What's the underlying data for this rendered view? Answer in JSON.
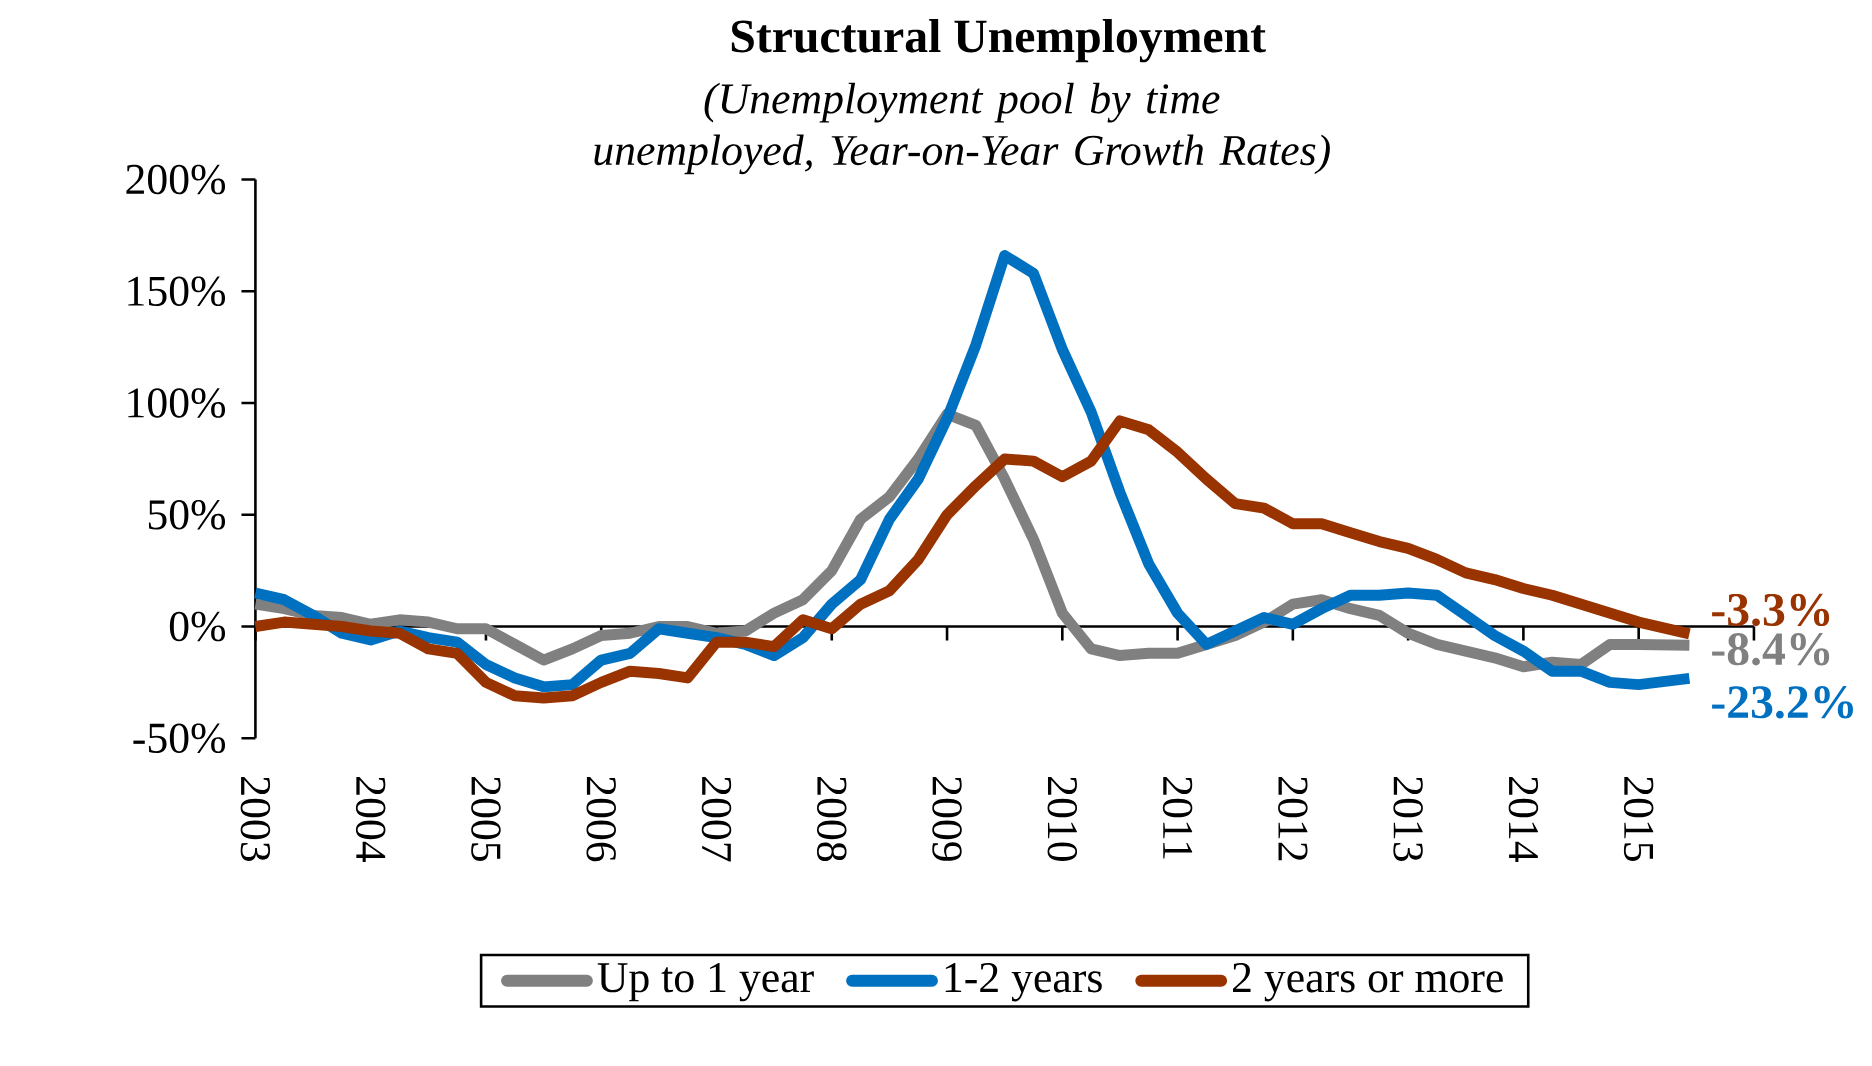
{
  "chart_data": {
    "type": "line",
    "title": "Structural Unemployment",
    "subtitle": "(Unemployment pool by time unemployed, Year-on-Year Growth Rates)",
    "x": [
      2003,
      2003.25,
      2003.5,
      2003.75,
      2004,
      2004.25,
      2004.5,
      2004.75,
      2005,
      2005.25,
      2005.5,
      2005.75,
      2006,
      2006.25,
      2006.5,
      2006.75,
      2007,
      2007.25,
      2007.5,
      2007.75,
      2008,
      2008.25,
      2008.5,
      2008.75,
      2009,
      2009.25,
      2009.5,
      2009.75,
      2010,
      2010.25,
      2010.5,
      2010.75,
      2011,
      2011.25,
      2011.5,
      2011.75,
      2012,
      2012.25,
      2012.5,
      2012.75,
      2013,
      2013.25,
      2013.5,
      2013.75,
      2014,
      2014.25,
      2014.5,
      2014.75,
      2015,
      2015.44
    ],
    "series": [
      {
        "name": "Up to 1 year",
        "color": "#808080",
        "values": [
          10,
          8,
          5,
          4,
          1,
          3,
          2,
          -1,
          -1,
          -8,
          -15,
          -10,
          -4,
          -3,
          0,
          0,
          -3,
          -2,
          6,
          12,
          25,
          48,
          58,
          75,
          95,
          90,
          66,
          39,
          6,
          -10,
          -13,
          -12,
          -12,
          -8,
          -4,
          2,
          10,
          12,
          8,
          5,
          -3,
          -8,
          -11,
          -14,
          -18,
          -16,
          -17,
          -8,
          -8,
          -8.4
        ],
        "value_labels": [
          null,
          null,
          null,
          null,
          null,
          null,
          null,
          null,
          null,
          null,
          null,
          null,
          null,
          null,
          null,
          null,
          null,
          null,
          null,
          null,
          null,
          null,
          null,
          null,
          null,
          null,
          null,
          null,
          null,
          null,
          null,
          null,
          null,
          null,
          null,
          null,
          null,
          null,
          null,
          null,
          null,
          null,
          null,
          null,
          null,
          null,
          null,
          null,
          null,
          "-8.4%"
        ]
      },
      {
        "name": "1-2 years",
        "color": "#0070c0",
        "values": [
          15,
          12,
          5,
          -3,
          -6,
          -2,
          -5,
          -7,
          -17,
          -23,
          -27,
          -26,
          -15,
          -12,
          -1,
          -3,
          -5,
          -8,
          -13,
          -5,
          10,
          21,
          48,
          66,
          93,
          126,
          166,
          158,
          124,
          96,
          60,
          28,
          6,
          -8,
          -2,
          4,
          1,
          8,
          14,
          14,
          15,
          14,
          5,
          -4,
          -11,
          -20,
          -20,
          -25,
          -26,
          -23.2
        ],
        "value_labels": [
          null,
          null,
          null,
          null,
          null,
          null,
          null,
          null,
          null,
          null,
          null,
          null,
          null,
          null,
          null,
          null,
          null,
          null,
          null,
          null,
          null,
          null,
          null,
          null,
          null,
          null,
          null,
          null,
          null,
          null,
          null,
          null,
          null,
          null,
          null,
          null,
          null,
          null,
          null,
          null,
          null,
          null,
          null,
          null,
          null,
          null,
          null,
          null,
          null,
          "-23.2%"
        ]
      },
      {
        "name": "2 years or more",
        "color": "#993300",
        "values": [
          0,
          2,
          1,
          0,
          -2,
          -3,
          -10,
          -12,
          -25,
          -31,
          -32,
          -31,
          -25,
          -20,
          -21,
          -23,
          -7,
          -7,
          -9,
          3,
          -1,
          10,
          16,
          30,
          50,
          63,
          75,
          74,
          67,
          74,
          92,
          88,
          78,
          66,
          55,
          53,
          46,
          46,
          42,
          38,
          35,
          30,
          24,
          21,
          17,
          14,
          10,
          6,
          2,
          -3.3
        ],
        "value_labels": [
          null,
          null,
          null,
          null,
          null,
          null,
          null,
          null,
          null,
          null,
          null,
          null,
          null,
          null,
          null,
          null,
          null,
          null,
          null,
          null,
          null,
          null,
          null,
          null,
          null,
          null,
          null,
          null,
          null,
          null,
          null,
          null,
          null,
          null,
          null,
          null,
          null,
          null,
          null,
          null,
          null,
          null,
          null,
          null,
          null,
          null,
          null,
          null,
          null,
          "-3.3%"
        ]
      }
    ],
    "xlim": [
      2003,
      2016
    ],
    "xticks": [
      2003,
      2004,
      2005,
      2006,
      2007,
      2008,
      2009,
      2010,
      2011,
      2012,
      2013,
      2014,
      2015,
      {
        "value": 2016,
        "label": null
      }
    ],
    "ylim": [
      -50,
      200
    ],
    "yticks": [
      {
        "value": -50,
        "label": "-50%"
      },
      {
        "value": 0,
        "label": "0%"
      },
      {
        "value": 50,
        "label": "50%"
      },
      {
        "value": 100,
        "label": "100%"
      },
      {
        "value": 150,
        "label": "150%"
      },
      {
        "value": 200,
        "label": "200%"
      }
    ],
    "legend": "bottom",
    "marker": "none",
    "line_style": "solid"
  }
}
